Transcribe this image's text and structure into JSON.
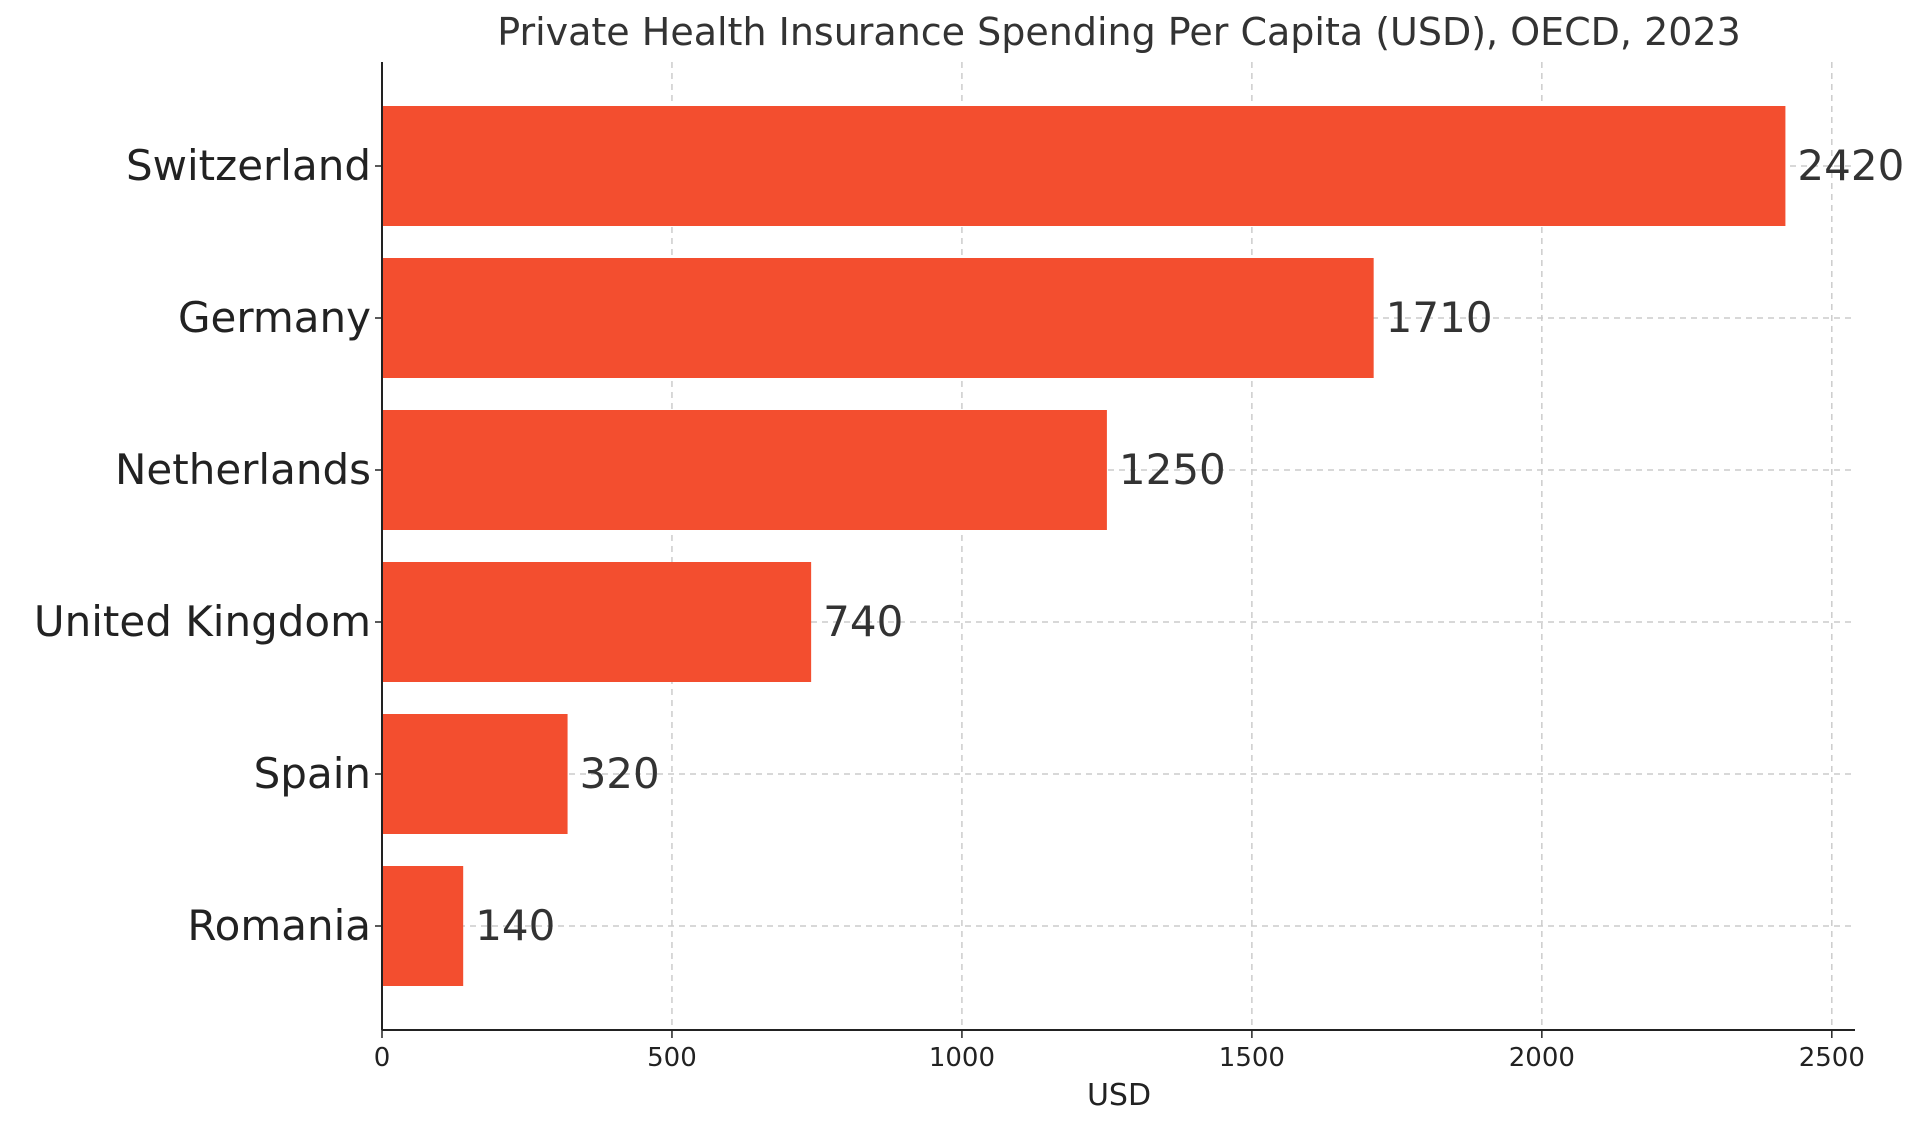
{
  "chart_data": {
    "type": "bar",
    "orientation": "horizontal",
    "title": "Private Health Insurance Spending Per Capita (USD), OECD, 2023",
    "xlabel": "USD",
    "ylabel": "",
    "categories": [
      "Switzerland",
      "Germany",
      "Netherlands",
      "United Kingdom",
      "Spain",
      "Romania"
    ],
    "values": [
      2420,
      1710,
      1250,
      740,
      320,
      140
    ],
    "value_labels": [
      "2420",
      "1710",
      "1250",
      "740",
      "320",
      "140"
    ],
    "xlim": [
      0,
      2540
    ],
    "x_ticks": [
      0,
      500,
      1000,
      1500,
      2000,
      2500
    ],
    "x_tick_labels": [
      "0",
      "500",
      "1000",
      "1500",
      "2000",
      "2500"
    ],
    "grid": true,
    "grid_style": "dashed",
    "legend": "none",
    "colors": {
      "bar": "#f34e2f",
      "grid": "#cccccc",
      "axis": "#222222",
      "text": "#333333"
    }
  }
}
